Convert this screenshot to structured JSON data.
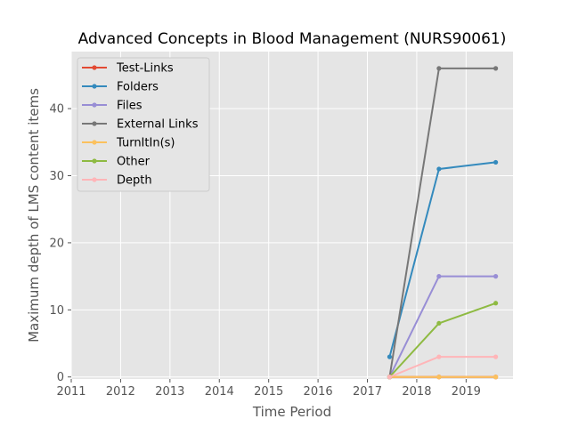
{
  "chart_data": {
    "type": "line",
    "title": "Advanced Concepts in Blood Management (NURS90061)",
    "xlabel": "Time Period",
    "ylabel": "Maximum depth of LMS content items",
    "xlim": [
      2011.0,
      2019.95
    ],
    "ylim": [
      -0.3,
      48.5
    ],
    "x_ticks": [
      "2011",
      "2012",
      "2013",
      "2014",
      "2015",
      "2016",
      "2017",
      "2018",
      "2019"
    ],
    "y_ticks": [
      "0",
      "10",
      "20",
      "30",
      "40"
    ],
    "grid": true,
    "legend_position": "upper-left",
    "x": [
      2017.45,
      2018.45,
      2019.6
    ],
    "series": [
      {
        "name": "Test-Links",
        "color": "#e24a33",
        "values": [
          0,
          0,
          0
        ]
      },
      {
        "name": "Folders",
        "color": "#348abd",
        "values": [
          3,
          31,
          32
        ]
      },
      {
        "name": "Files",
        "color": "#988ed5",
        "values": [
          0,
          15,
          15
        ]
      },
      {
        "name": "External Links",
        "color": "#777777",
        "values": [
          0,
          46,
          46
        ]
      },
      {
        "name": "TurnItIn(s)",
        "color": "#fbc15e",
        "values": [
          0,
          0,
          0
        ]
      },
      {
        "name": "Other",
        "color": "#8eba42",
        "values": [
          0,
          8,
          11
        ]
      },
      {
        "name": "Depth",
        "color": "#ffb5b8",
        "values": [
          0,
          3,
          3
        ]
      }
    ]
  }
}
